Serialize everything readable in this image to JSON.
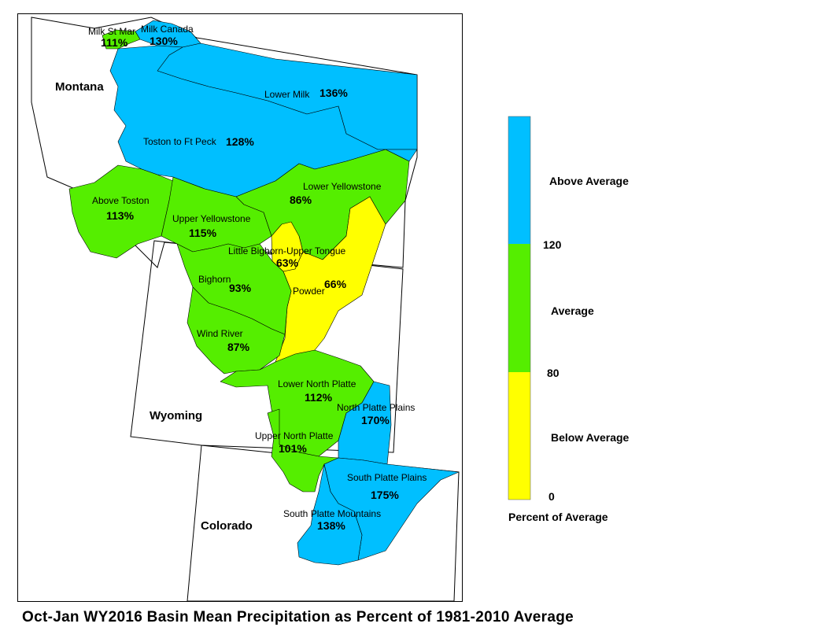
{
  "title": "Oct-Jan WY2016 Basin Mean Precipitation as Percent of 1981-2010 Average",
  "colors": {
    "above": "#00BFFF",
    "average": "#55EE00",
    "below": "#FFFF00"
  },
  "states": [
    {
      "id": "montana",
      "label": "Montana"
    },
    {
      "id": "wyoming",
      "label": "Wyoming"
    },
    {
      "id": "colorado",
      "label": "Colorado"
    }
  ],
  "basins": [
    {
      "id": "milk-st-mary",
      "name": "Milk St Mar",
      "value": "111%",
      "category": "average"
    },
    {
      "id": "milk-canada",
      "name": "Milk Canada",
      "value": "130%",
      "category": "above"
    },
    {
      "id": "lower-milk",
      "name": "Lower Milk",
      "value": "136%",
      "category": "above"
    },
    {
      "id": "toston-ft-peck",
      "name": "Toston to Ft Peck",
      "value": "128%",
      "category": "above"
    },
    {
      "id": "above-toston",
      "name": "Above Toston",
      "value": "113%",
      "category": "average"
    },
    {
      "id": "lower-yellowstone",
      "name": "Lower Yellowstone",
      "value": "86%",
      "category": "average"
    },
    {
      "id": "upper-yellowstone",
      "name": "Upper Yellowstone",
      "value": "115%",
      "category": "average"
    },
    {
      "id": "little-bighorn",
      "name": "Little Bighorn-Upper Tongue",
      "value": "63%",
      "category": "below"
    },
    {
      "id": "powder",
      "name": "Powder",
      "value": "66%",
      "category": "below"
    },
    {
      "id": "bighorn",
      "name": "Bighorn",
      "value": "93%",
      "category": "average"
    },
    {
      "id": "wind-river",
      "name": "Wind River",
      "value": "87%",
      "category": "average"
    },
    {
      "id": "lower-north-platte",
      "name": "Lower North Platte",
      "value": "112%",
      "category": "average"
    },
    {
      "id": "north-platte-plains",
      "name": "North Platte Plains",
      "value": "170%",
      "category": "above"
    },
    {
      "id": "upper-north-platte",
      "name": "Upper North Platte",
      "value": "101%",
      "category": "average"
    },
    {
      "id": "south-platte-plains",
      "name": "South Platte Plains",
      "value": "175%",
      "category": "above"
    },
    {
      "id": "south-platte-mountains",
      "name": "South Platte Mountains",
      "value": "138%",
      "category": "above"
    }
  ],
  "legend": {
    "title": "Percent of Average",
    "classes": [
      {
        "label": "Above Average",
        "color": "#00BFFF"
      },
      {
        "label": "Average",
        "color": "#55EE00"
      },
      {
        "label": "Below Average",
        "color": "#FFFF00"
      }
    ],
    "breaks": [
      "120",
      "80",
      "0"
    ]
  }
}
